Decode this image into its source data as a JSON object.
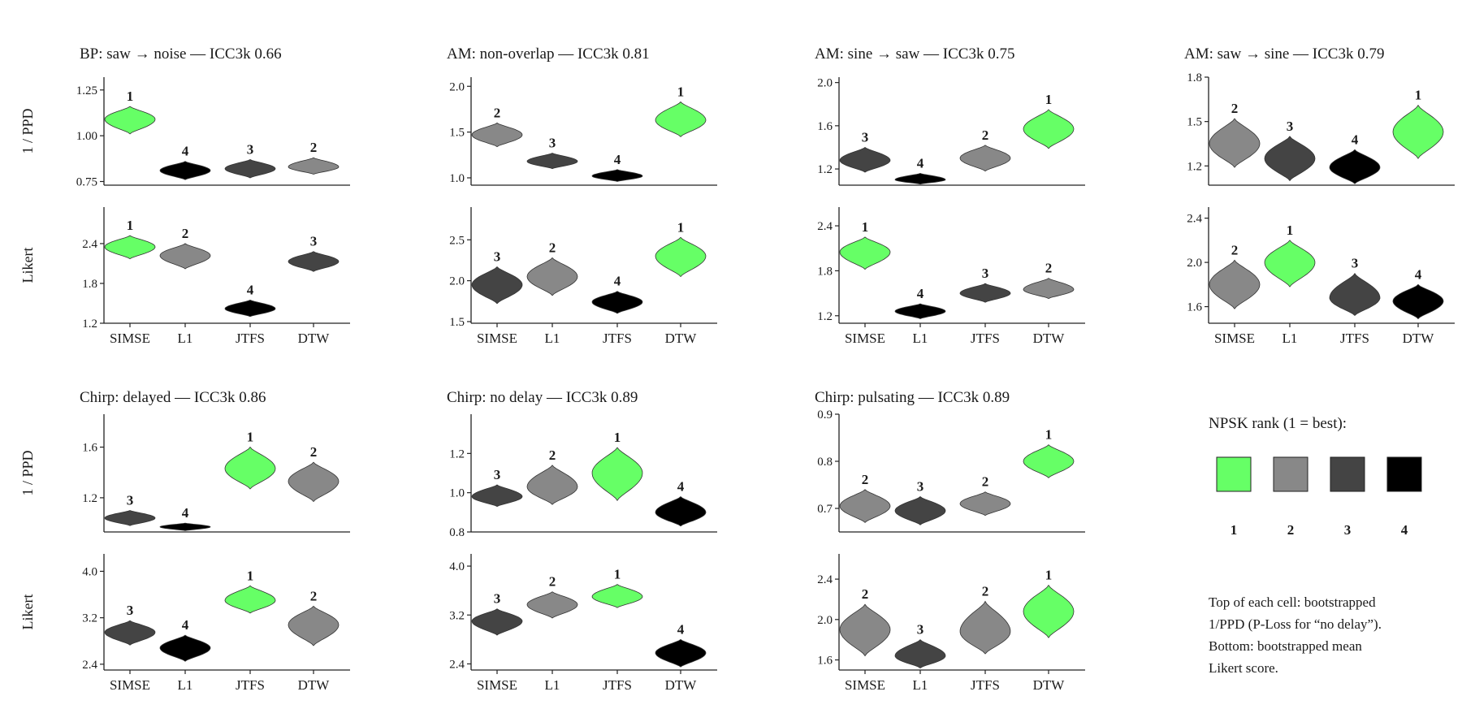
{
  "chart_data": [
    {
      "type": "violin",
      "title": "BP: saw → noise  —  ICC3k 0.66",
      "categories": [
        "SIMSE",
        "L1",
        "JTFS",
        "DTW"
      ],
      "top": {
        "ylabel": "1 / PPD",
        "ylim": [
          0.73,
          1.32
        ],
        "ticks": [
          {
            "v": 0.75,
            "label": "0.75"
          },
          {
            "v": 1.0,
            "label": "1.00"
          },
          {
            "v": 1.25,
            "label": "1.25"
          }
        ],
        "violins": [
          {
            "center": 1.09,
            "low": 1.01,
            "high": 1.16,
            "rank": 1
          },
          {
            "center": 0.81,
            "low": 0.76,
            "high": 0.86,
            "rank": 4
          },
          {
            "center": 0.82,
            "low": 0.77,
            "high": 0.87,
            "rank": 3
          },
          {
            "center": 0.83,
            "low": 0.79,
            "high": 0.88,
            "rank": 2
          }
        ]
      },
      "bottom": {
        "ylabel": "Likert",
        "ylim": [
          1.2,
          2.95
        ],
        "ticks": [
          {
            "v": 1.2,
            "label": "1.2"
          },
          {
            "v": 1.8,
            "label": "1.8"
          },
          {
            "v": 2.4,
            "label": "2.4"
          }
        ],
        "violins": [
          {
            "center": 2.35,
            "low": 2.17,
            "high": 2.52,
            "rank": 1
          },
          {
            "center": 2.22,
            "low": 2.02,
            "high": 2.4,
            "rank": 2
          },
          {
            "center": 1.42,
            "low": 1.3,
            "high": 1.55,
            "rank": 4
          },
          {
            "center": 2.13,
            "low": 1.98,
            "high": 2.28,
            "rank": 3
          }
        ]
      }
    },
    {
      "type": "violin",
      "title": "AM: non-overlap  —  ICC3k 0.81",
      "categories": [
        "SIMSE",
        "L1",
        "JTFS",
        "DTW"
      ],
      "top": {
        "ylabel": "",
        "ylim": [
          0.92,
          2.1
        ],
        "ticks": [
          {
            "v": 1.0,
            "label": "1.0"
          },
          {
            "v": 1.5,
            "label": "1.5"
          },
          {
            "v": 2.0,
            "label": "2.0"
          }
        ],
        "violins": [
          {
            "center": 1.47,
            "low": 1.34,
            "high": 1.6,
            "rank": 2
          },
          {
            "center": 1.18,
            "low": 1.1,
            "high": 1.27,
            "rank": 3
          },
          {
            "center": 1.02,
            "low": 0.96,
            "high": 1.09,
            "rank": 4
          },
          {
            "center": 1.63,
            "low": 1.45,
            "high": 1.83,
            "rank": 1
          }
        ]
      },
      "bottom": {
        "ylabel": "",
        "ylim": [
          1.48,
          2.9
        ],
        "ticks": [
          {
            "v": 1.5,
            "label": "1.5"
          },
          {
            "v": 2.0,
            "label": "2.0"
          },
          {
            "v": 2.5,
            "label": "2.5"
          }
        ],
        "violins": [
          {
            "center": 1.95,
            "low": 1.72,
            "high": 2.17,
            "rank": 3
          },
          {
            "center": 2.05,
            "low": 1.82,
            "high": 2.28,
            "rank": 2
          },
          {
            "center": 1.74,
            "low": 1.6,
            "high": 1.87,
            "rank": 4
          },
          {
            "center": 2.3,
            "low": 2.05,
            "high": 2.53,
            "rank": 1
          }
        ]
      }
    },
    {
      "type": "violin",
      "title": "AM: sine → saw  —  ICC3k 0.75",
      "categories": [
        "SIMSE",
        "L1",
        "JTFS",
        "DTW"
      ],
      "top": {
        "ylabel": "",
        "ylim": [
          1.05,
          2.05
        ],
        "ticks": [
          {
            "v": 1.2,
            "label": "1.2"
          },
          {
            "v": 1.6,
            "label": "1.6"
          },
          {
            "v": 2.0,
            "label": "2.0"
          }
        ],
        "violins": [
          {
            "center": 1.28,
            "low": 1.17,
            "high": 1.4,
            "rank": 3
          },
          {
            "center": 1.1,
            "low": 1.06,
            "high": 1.16,
            "rank": 4
          },
          {
            "center": 1.3,
            "low": 1.18,
            "high": 1.42,
            "rank": 2
          },
          {
            "center": 1.57,
            "low": 1.39,
            "high": 1.75,
            "rank": 1
          }
        ]
      },
      "bottom": {
        "ylabel": "",
        "ylim": [
          1.1,
          2.65
        ],
        "ticks": [
          {
            "v": 1.2,
            "label": "1.2"
          },
          {
            "v": 1.8,
            "label": "1.8"
          },
          {
            "v": 2.4,
            "label": "2.4"
          }
        ],
        "violins": [
          {
            "center": 2.05,
            "low": 1.82,
            "high": 2.25,
            "rank": 1
          },
          {
            "center": 1.26,
            "low": 1.16,
            "high": 1.36,
            "rank": 4
          },
          {
            "center": 1.5,
            "low": 1.38,
            "high": 1.63,
            "rank": 3
          },
          {
            "center": 1.55,
            "low": 1.43,
            "high": 1.7,
            "rank": 2
          }
        ]
      }
    },
    {
      "type": "violin",
      "title": "AM: saw → sine  —  ICC3k 0.79",
      "categories": [
        "SIMSE",
        "L1",
        "JTFS",
        "DTW"
      ],
      "top": {
        "ylabel": "",
        "ylim": [
          1.07,
          1.8
        ],
        "ticks": [
          {
            "v": 1.2,
            "label": "1.2"
          },
          {
            "v": 1.5,
            "label": "1.5"
          },
          {
            "v": 1.8,
            "label": "1.8"
          }
        ],
        "violins": [
          {
            "center": 1.35,
            "low": 1.19,
            "high": 1.52,
            "rank": 2
          },
          {
            "center": 1.25,
            "low": 1.1,
            "high": 1.4,
            "rank": 3
          },
          {
            "center": 1.19,
            "low": 1.08,
            "high": 1.31,
            "rank": 4
          },
          {
            "center": 1.43,
            "low": 1.25,
            "high": 1.61,
            "rank": 1
          }
        ]
      },
      "bottom": {
        "ylabel": "",
        "ylim": [
          1.45,
          2.5
        ],
        "ticks": [
          {
            "v": 1.6,
            "label": "1.6"
          },
          {
            "v": 2.0,
            "label": "2.0"
          },
          {
            "v": 2.4,
            "label": "2.4"
          }
        ],
        "violins": [
          {
            "center": 1.8,
            "low": 1.58,
            "high": 2.02,
            "rank": 2
          },
          {
            "center": 2.0,
            "low": 1.78,
            "high": 2.2,
            "rank": 1
          },
          {
            "center": 1.68,
            "low": 1.52,
            "high": 1.9,
            "rank": 3
          },
          {
            "center": 1.65,
            "low": 1.49,
            "high": 1.8,
            "rank": 4
          }
        ]
      }
    },
    {
      "type": "violin",
      "title": "Chirp: delayed  —  ICC3k 0.86",
      "categories": [
        "SIMSE",
        "L1",
        "JTFS",
        "DTW"
      ],
      "top": {
        "ylabel": "1 / PPD",
        "ylim": [
          0.93,
          1.86
        ],
        "ticks": [
          {
            "v": 1.2,
            "label": "1.2"
          },
          {
            "v": 1.6,
            "label": "1.6"
          }
        ],
        "violins": [
          {
            "center": 1.04,
            "low": 0.98,
            "high": 1.1,
            "rank": 3
          },
          {
            "center": 0.97,
            "low": 0.94,
            "high": 1.0,
            "rank": 4
          },
          {
            "center": 1.43,
            "low": 1.27,
            "high": 1.6,
            "rank": 1
          },
          {
            "center": 1.33,
            "low": 1.17,
            "high": 1.48,
            "rank": 2
          }
        ]
      },
      "bottom": {
        "ylabel": "Likert",
        "ylim": [
          2.3,
          4.3
        ],
        "ticks": [
          {
            "v": 2.4,
            "label": "2.4"
          },
          {
            "v": 3.2,
            "label": "3.2"
          },
          {
            "v": 4.0,
            "label": "4.0"
          }
        ],
        "violins": [
          {
            "center": 2.95,
            "low": 2.73,
            "high": 3.15,
            "rank": 3
          },
          {
            "center": 2.68,
            "low": 2.45,
            "high": 2.9,
            "rank": 4
          },
          {
            "center": 3.5,
            "low": 3.28,
            "high": 3.75,
            "rank": 1
          },
          {
            "center": 3.08,
            "low": 2.72,
            "high": 3.4,
            "rank": 2
          }
        ]
      }
    },
    {
      "type": "violin",
      "title": "Chirp: no delay  —  ICC3k 0.89",
      "categories": [
        "SIMSE",
        "L1",
        "JTFS",
        "DTW"
      ],
      "top": {
        "ylabel": "",
        "ylim": [
          0.8,
          1.4
        ],
        "ticks": [
          {
            "v": 0.8,
            "label": "0.8"
          },
          {
            "v": 1.0,
            "label": "1.0"
          },
          {
            "v": 1.2,
            "label": "1.2"
          }
        ],
        "violins": [
          {
            "center": 0.98,
            "low": 0.93,
            "high": 1.04,
            "rank": 3
          },
          {
            "center": 1.03,
            "low": 0.94,
            "high": 1.14,
            "rank": 2
          },
          {
            "center": 1.1,
            "low": 0.96,
            "high": 1.23,
            "rank": 1
          },
          {
            "center": 0.9,
            "low": 0.83,
            "high": 0.98,
            "rank": 4
          }
        ]
      },
      "bottom": {
        "ylabel": "",
        "ylim": [
          2.3,
          4.2
        ],
        "ticks": [
          {
            "v": 2.4,
            "label": "2.4"
          },
          {
            "v": 3.2,
            "label": "3.2"
          },
          {
            "v": 4.0,
            "label": "4.0"
          }
        ],
        "violins": [
          {
            "center": 3.1,
            "low": 2.87,
            "high": 3.3,
            "rank": 3
          },
          {
            "center": 3.37,
            "low": 3.15,
            "high": 3.58,
            "rank": 2
          },
          {
            "center": 3.5,
            "low": 3.32,
            "high": 3.7,
            "rank": 1
          },
          {
            "center": 2.58,
            "low": 2.35,
            "high": 2.8,
            "rank": 4
          }
        ]
      }
    },
    {
      "type": "violin",
      "title": "Chirp: pulsating  —  ICC3k 0.89",
      "categories": [
        "SIMSE",
        "L1",
        "JTFS",
        "DTW"
      ],
      "top": {
        "ylabel": "",
        "ylim": [
          0.65,
          0.9
        ],
        "ticks": [
          {
            "v": 0.7,
            "label": "0.7"
          },
          {
            "v": 0.8,
            "label": "0.8"
          },
          {
            "v": 0.9,
            "label": "0.9"
          }
        ],
        "violins": [
          {
            "center": 0.705,
            "low": 0.67,
            "high": 0.74,
            "rank": 2
          },
          {
            "center": 0.695,
            "low": 0.665,
            "high": 0.725,
            "rank": 3
          },
          {
            "center": 0.71,
            "low": 0.685,
            "high": 0.735,
            "rank": 2
          },
          {
            "center": 0.8,
            "low": 0.765,
            "high": 0.835,
            "rank": 1
          }
        ]
      },
      "bottom": {
        "ylabel": "",
        "ylim": [
          1.5,
          2.65
        ],
        "ticks": [
          {
            "v": 1.6,
            "label": "1.6"
          },
          {
            "v": 2.0,
            "label": "2.0"
          },
          {
            "v": 2.4,
            "label": "2.4"
          }
        ],
        "violins": [
          {
            "center": 1.9,
            "low": 1.64,
            "high": 2.15,
            "rank": 2
          },
          {
            "center": 1.64,
            "low": 1.52,
            "high": 1.8,
            "rank": 3
          },
          {
            "center": 1.88,
            "low": 1.66,
            "high": 2.18,
            "rank": 2
          },
          {
            "center": 2.08,
            "low": 1.82,
            "high": 2.34,
            "rank": 1
          }
        ]
      }
    }
  ],
  "legend": {
    "title": "NPSK rank (1 = best):",
    "items": [
      {
        "rank": 1,
        "label": "1",
        "color": "#66ff66"
      },
      {
        "rank": 2,
        "label": "2",
        "color": "#888888"
      },
      {
        "rank": 3,
        "label": "3",
        "color": "#444444"
      },
      {
        "rank": 4,
        "label": "4",
        "color": "#000000"
      }
    ]
  },
  "note": [
    "Top of each cell: bootstrapped",
    "1/PPD (P-Loss for “no delay”).",
    "Bottom: bootstrapped mean",
    "Likert score."
  ],
  "colors": {
    "1": "#66ff66",
    "2": "#888888",
    "3": "#444444",
    "4": "#000000"
  }
}
